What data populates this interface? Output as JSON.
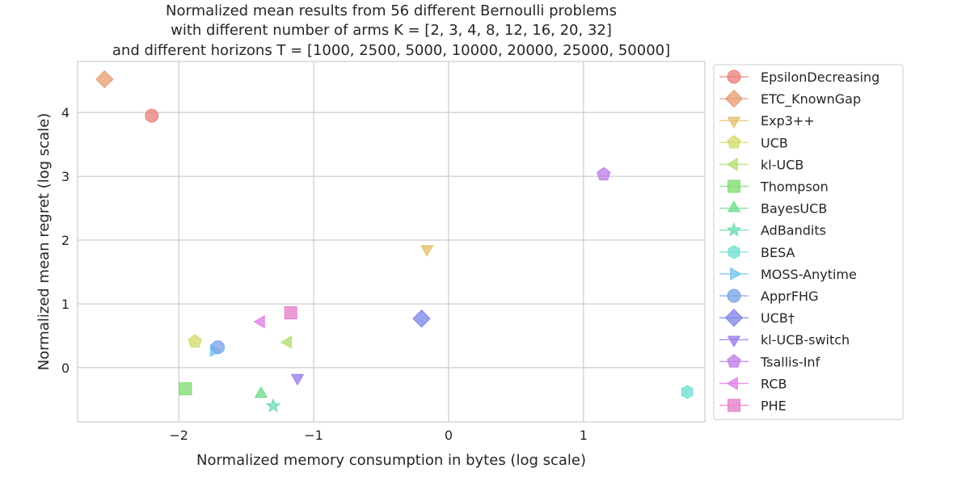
{
  "chart_data": {
    "type": "scatter",
    "title_lines": [
      "Normalized mean results from 56 different Bernoulli problems",
      "with different number of arms K = [2, 3, 4, 8, 12, 16, 20, 32]",
      "and different horizons T = [1000, 2500, 5000, 10000, 20000, 25000, 50000]"
    ],
    "xlabel": "Normalized memory consumption in bytes (log scale)",
    "ylabel": "Normalized mean regret (log scale)",
    "xlim": [
      -2.75,
      1.9
    ],
    "ylim": [
      -0.85,
      4.8
    ],
    "xticks": [
      -2,
      -1,
      0,
      1
    ],
    "xtick_labels": [
      "−2",
      "−1",
      "0",
      "1"
    ],
    "yticks": [
      0,
      1,
      2,
      3,
      4
    ],
    "ytick_labels": [
      "0",
      "1",
      "2",
      "3",
      "4"
    ],
    "grid": true,
    "legend_position": "outside-right",
    "series": [
      {
        "name": "EpsilonDecreasing",
        "x": -2.2,
        "y": 3.95,
        "marker": "circle",
        "color": "#e8837c"
      },
      {
        "name": "ETC_KnownGap",
        "x": -2.55,
        "y": 4.52,
        "marker": "diamond",
        "color": "#e89e74"
      },
      {
        "name": "Exp3++",
        "x": -0.16,
        "y": 1.86,
        "marker": "triangle-down",
        "color": "#e2c26d"
      },
      {
        "name": "UCB",
        "x": -1.88,
        "y": 0.41,
        "marker": "pentagon",
        "color": "#d3dc6c"
      },
      {
        "name": "kl-UCB",
        "x": -1.19,
        "y": 0.4,
        "marker": "triangle-left",
        "color": "#b5df70"
      },
      {
        "name": "Thompson",
        "x": -1.95,
        "y": -0.33,
        "marker": "square",
        "color": "#82dd72"
      },
      {
        "name": "BayesUCB",
        "x": -1.39,
        "y": -0.41,
        "marker": "triangle-up",
        "color": "#70dc8f"
      },
      {
        "name": "AdBandits",
        "x": -1.3,
        "y": -0.6,
        "marker": "star",
        "color": "#6fdcb0"
      },
      {
        "name": "BESA",
        "x": 1.77,
        "y": -0.38,
        "marker": "hexagon",
        "color": "#71dfd3"
      },
      {
        "name": "MOSS-Anytime",
        "x": -1.74,
        "y": 0.27,
        "marker": "triangle-right",
        "color": "#73c6ea"
      },
      {
        "name": "ApprFHG",
        "x": -1.71,
        "y": 0.32,
        "marker": "circle",
        "color": "#7ca4ea"
      },
      {
        "name": "UCB†",
        "x": -0.2,
        "y": 0.77,
        "marker": "diamond",
        "color": "#7f86e8"
      },
      {
        "name": "kl-UCB-switch",
        "x": -1.12,
        "y": -0.16,
        "marker": "triangle-down",
        "color": "#9a7eea"
      },
      {
        "name": "Tsallis-Inf",
        "x": 1.15,
        "y": 3.03,
        "marker": "pentagon",
        "color": "#c07ee8"
      },
      {
        "name": "RCB",
        "x": -1.39,
        "y": 0.72,
        "marker": "triangle-left",
        "color": "#e17ee8"
      },
      {
        "name": "PHE",
        "x": -1.17,
        "y": 0.86,
        "marker": "square",
        "color": "#e47fcb"
      }
    ]
  }
}
